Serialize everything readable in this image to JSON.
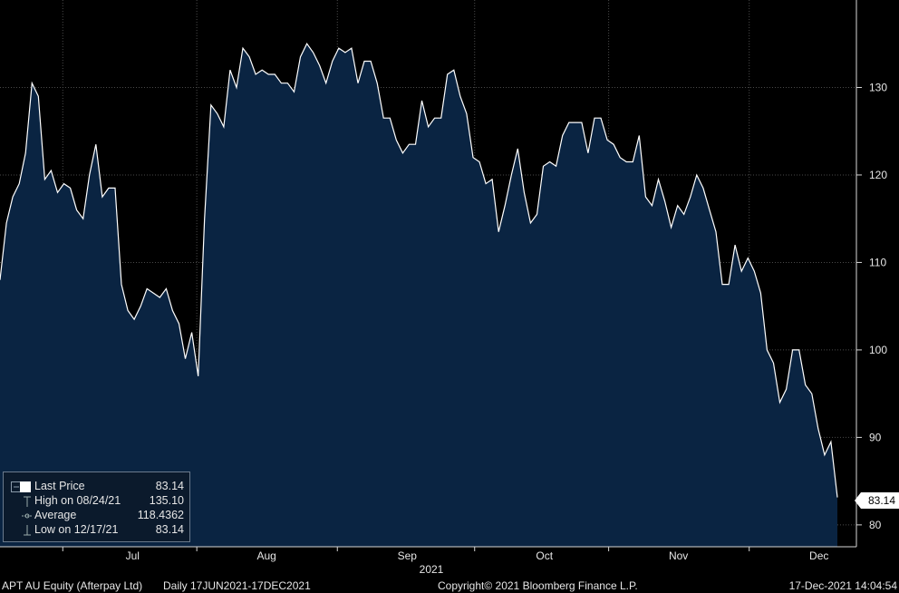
{
  "chart_data": {
    "type": "area",
    "title": "",
    "ylim": [
      77.5,
      140
    ],
    "yticks": [
      80,
      90,
      100,
      110,
      120,
      130
    ],
    "xlim": [
      0,
      163
    ],
    "month_labels": [
      {
        "label": "Jul",
        "pos": 40
      },
      {
        "label": "Aug",
        "pos": 81
      },
      {
        "label": "Sep",
        "pos": 124
      },
      {
        "label": "Oct",
        "pos": 166
      },
      {
        "label": "Nov",
        "pos": 207
      },
      {
        "label": "Dec",
        "pos": 250
      }
    ],
    "year_label": "2021",
    "series": [
      {
        "name": "Last Price",
        "values": [
          108,
          114.5,
          117.5,
          119,
          122.5,
          130.5,
          129,
          119.5,
          120.5,
          118,
          119,
          118.5,
          116,
          115,
          120,
          123.5,
          117.5,
          118.5,
          118.5,
          107.5,
          104.5,
          103.5,
          105,
          107,
          106.5,
          106,
          107,
          104.5,
          103,
          99,
          102,
          97,
          115,
          128,
          127,
          125.5,
          132,
          130,
          134.5,
          133.5,
          131.5,
          132,
          131.5,
          131.5,
          130.5,
          130.5,
          129.5,
          133.5,
          135,
          134,
          132.5,
          130.5,
          133,
          134.5,
          134,
          134.5,
          130.5,
          133,
          133,
          130.5,
          126.5,
          126.5,
          124,
          122.5,
          123.5,
          123.5,
          128.5,
          125.5,
          126.5,
          126.5,
          131.5,
          132,
          129,
          127,
          122,
          121.5,
          119,
          119.5,
          113.5,
          116.5,
          120,
          123,
          118,
          114.5,
          115.5,
          121,
          121.5,
          121,
          124.5,
          126,
          126,
          126,
          122.5,
          126.5,
          126.5,
          124,
          123.5,
          122,
          121.5,
          121.5,
          124.5,
          117.5,
          116.5,
          119.5,
          117,
          114,
          116.5,
          115.5,
          117.5,
          120,
          118.5,
          116,
          113.5,
          107.5,
          107.5,
          112,
          109,
          110.5,
          109,
          106.5,
          100,
          98.5,
          94,
          95.5,
          100,
          100,
          96,
          95,
          91,
          88,
          89.5,
          83.14
        ]
      }
    ],
    "last_price_tag": "83.14",
    "legend": {
      "last_price_label": "Last Price",
      "last_price_value": "83.14",
      "high_label": "High on 08/24/21",
      "high_value": "135.10",
      "average_label": "Average",
      "average_value": "118.4362",
      "low_label": "Low on 12/17/21",
      "low_value": "83.14"
    },
    "colors": {
      "fill": "#0a2442",
      "line": "#ffffff",
      "background": "#000000"
    }
  },
  "footer": {
    "ticker": "APT AU Equity (Afterpay Ltd)",
    "range": "Daily 17JUN2021-17DEC2021",
    "copyright": "Copyright© 2021 Bloomberg Finance L.P.",
    "timestamp": "17-Dec-2021 14:04:54"
  }
}
